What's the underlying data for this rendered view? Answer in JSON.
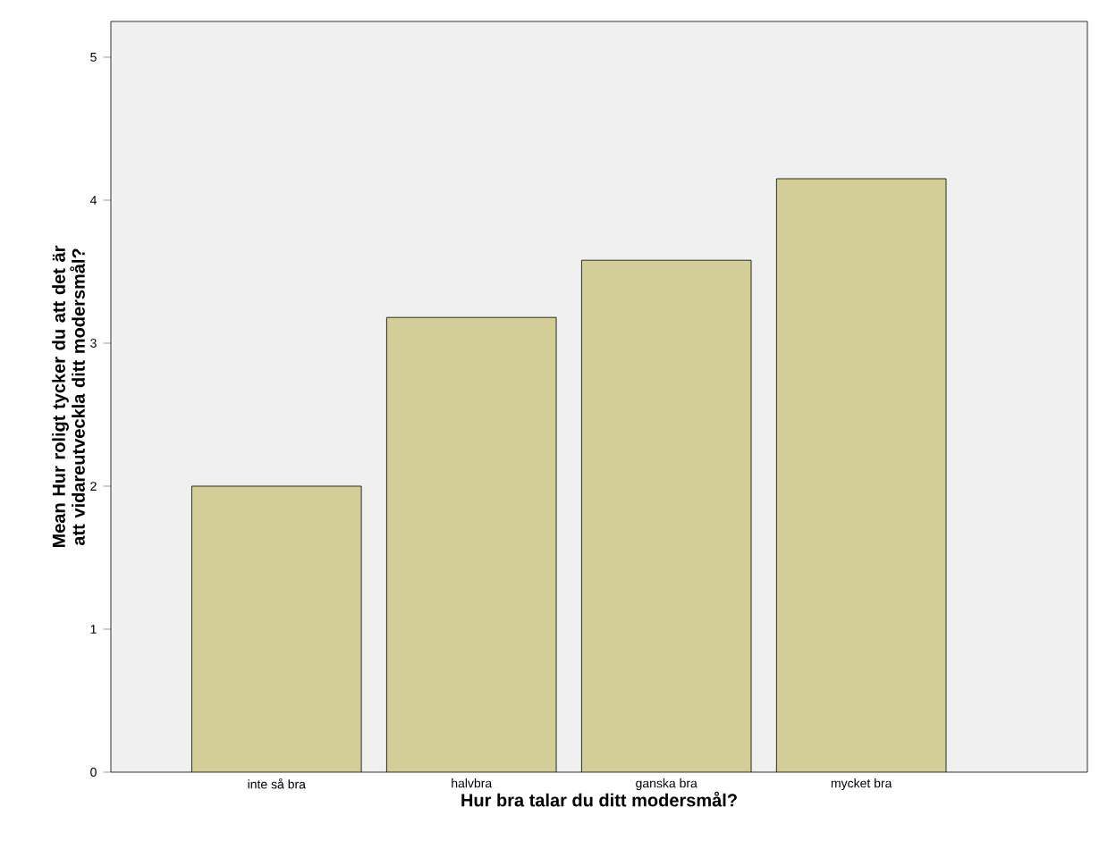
{
  "chart_data": {
    "type": "bar",
    "xlabel": "Hur bra talar du ditt modersmål?",
    "ylabel": "Mean Hur roligt tycker du att det är att vidareutveckla ditt modersmål?",
    "categories": [
      "inte så bra",
      "halvbra",
      "ganska bra",
      "mycket bra"
    ],
    "values": [
      2.0,
      3.18,
      3.58,
      4.15
    ],
    "color": "#d3ce98",
    "ylim": [
      0,
      5.25
    ],
    "yticks": [
      0,
      1,
      2,
      3,
      4,
      5
    ]
  }
}
